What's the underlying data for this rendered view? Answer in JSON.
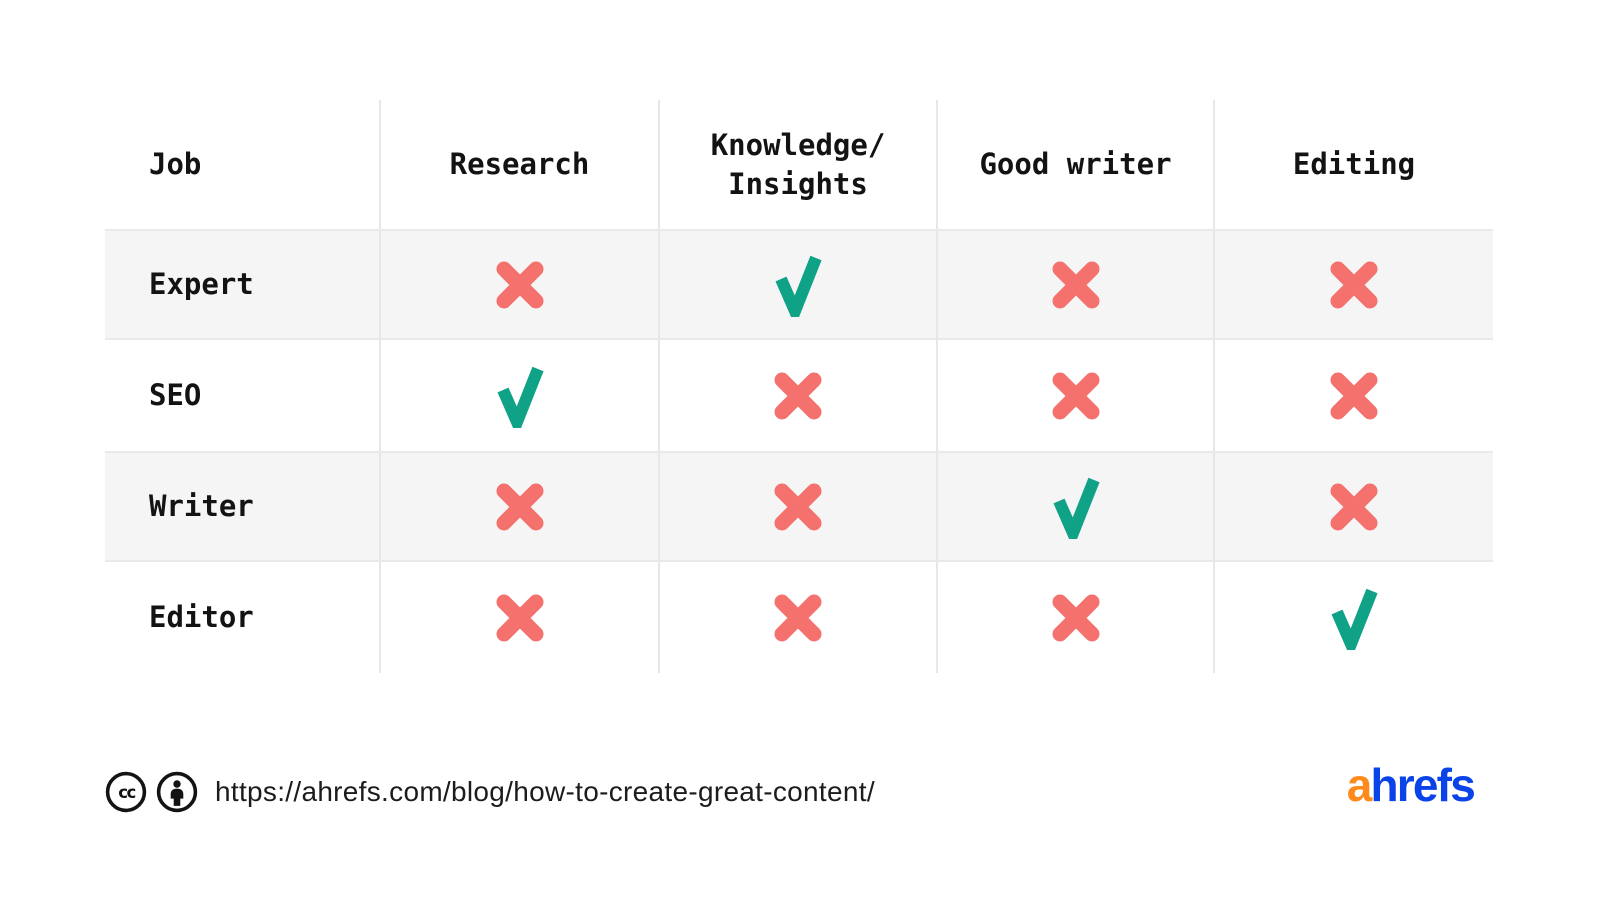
{
  "table": {
    "columns": [
      "Job",
      "Research",
      "Knowledge/\nInsights",
      "Good writer",
      "Editing"
    ],
    "rows": [
      {
        "label": "Expert",
        "values": [
          "no",
          "yes",
          "no",
          "no"
        ]
      },
      {
        "label": "SEO",
        "values": [
          "yes",
          "no",
          "no",
          "no"
        ]
      },
      {
        "label": "Writer",
        "values": [
          "no",
          "no",
          "yes",
          "no"
        ]
      },
      {
        "label": "Editor",
        "values": [
          "no",
          "no",
          "no",
          "yes"
        ]
      }
    ]
  },
  "chart_data": {
    "type": "table",
    "title": "",
    "columns": [
      "Job",
      "Research",
      "Knowledge/Insights",
      "Good writer",
      "Editing"
    ],
    "rows": [
      [
        "Expert",
        "✗",
        "✓",
        "✗",
        "✗"
      ],
      [
        "SEO",
        "✓",
        "✗",
        "✗",
        "✗"
      ],
      [
        "Writer",
        "✗",
        "✗",
        "✓",
        "✗"
      ],
      [
        "Editor",
        "✗",
        "✗",
        "✗",
        "✓"
      ]
    ],
    "layout_hints": {
      "striped_rows": [
        "Expert",
        "Writer"
      ],
      "check_symbol": "✓",
      "cross_symbol": "✗",
      "grid": "vertical column separators only"
    }
  },
  "footer": {
    "license_icon_names": [
      "cc-icon",
      "attribution-icon"
    ],
    "url": "https://ahrefs.com/blog/how-to-create-great-content/",
    "logo_a": "a",
    "logo_rest": "hrefs"
  },
  "colors": {
    "check": "#0FA287",
    "cross": "#F4716E",
    "stripe": "#F5F5F6",
    "stripe_line": "#E9E9E9",
    "grid_line": "#E7E7E7",
    "text": "#131313",
    "logo_orange": "#FF8A1C",
    "logo_blue": "#0A43E8"
  }
}
